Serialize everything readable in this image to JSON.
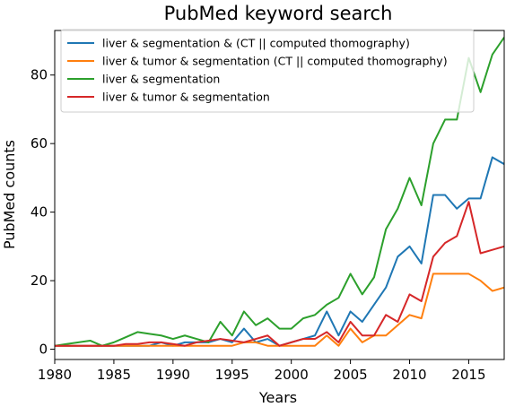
{
  "chart_data": {
    "type": "line",
    "title": "PubMed keyword search",
    "xlabel": "Years",
    "ylabel": "PubMed counts",
    "xlim": [
      1980,
      2018
    ],
    "ylim": [
      -3,
      93
    ],
    "xticks": [
      1980,
      1985,
      1990,
      1995,
      2000,
      2005,
      2010,
      2015
    ],
    "yticks": [
      0,
      20,
      40,
      60,
      80
    ],
    "grid": false,
    "legend_position": "top-right",
    "x": [
      1980,
      1981,
      1982,
      1983,
      1984,
      1985,
      1986,
      1987,
      1988,
      1989,
      1990,
      1991,
      1992,
      1993,
      1994,
      1995,
      1996,
      1997,
      1998,
      1999,
      2000,
      2001,
      2002,
      2003,
      2004,
      2005,
      2006,
      2007,
      2008,
      2009,
      2010,
      2011,
      2012,
      2013,
      2014,
      2015,
      2016,
      2017,
      2018
    ],
    "series": [
      {
        "name": "liver & segmentation & (CT || computed thomography)",
        "color": "#1f77b4",
        "values": [
          1,
          1,
          1,
          1,
          1,
          1,
          1,
          1,
          1,
          2,
          1,
          2,
          2,
          2,
          3,
          2,
          6,
          2,
          3,
          1,
          2,
          3,
          4,
          11,
          4,
          11,
          8,
          13,
          18,
          27,
          30,
          25,
          45,
          45,
          41,
          44,
          44,
          56,
          54
        ]
      },
      {
        "name": "liver & tumor & segmentation (CT || computed thomography)",
        "color": "#ff7f0e",
        "values": [
          1,
          1,
          1,
          1,
          1,
          1,
          1,
          1,
          1,
          1,
          1,
          1,
          1,
          1,
          1,
          1,
          2,
          2,
          1,
          1,
          1,
          1,
          1,
          4,
          1,
          6,
          2,
          4,
          4,
          7,
          10,
          9,
          22,
          22,
          22,
          22,
          20,
          17,
          18
        ]
      },
      {
        "name": "liver & segmentation",
        "color": "#2ca02c",
        "values": [
          1,
          1.5,
          2,
          2.5,
          1,
          2,
          3.5,
          5,
          4.5,
          4,
          3,
          4,
          3,
          2,
          8,
          4,
          11,
          7,
          9,
          6,
          6,
          9,
          10,
          13,
          15,
          22,
          16,
          21,
          35,
          41,
          50,
          42,
          60,
          67,
          67,
          85,
          75,
          86,
          91
        ]
      },
      {
        "name": "liver & tumor & segmentation",
        "color": "#d62728",
        "values": [
          1,
          1,
          1,
          1,
          1,
          1,
          1.5,
          1.5,
          2,
          2,
          1.5,
          1,
          2,
          2.5,
          3,
          2.5,
          2,
          3,
          4,
          1,
          2,
          3,
          3,
          5,
          2,
          8,
          4,
          4,
          10,
          8,
          16,
          14,
          27,
          31,
          33,
          43,
          28,
          29,
          30
        ]
      }
    ]
  }
}
